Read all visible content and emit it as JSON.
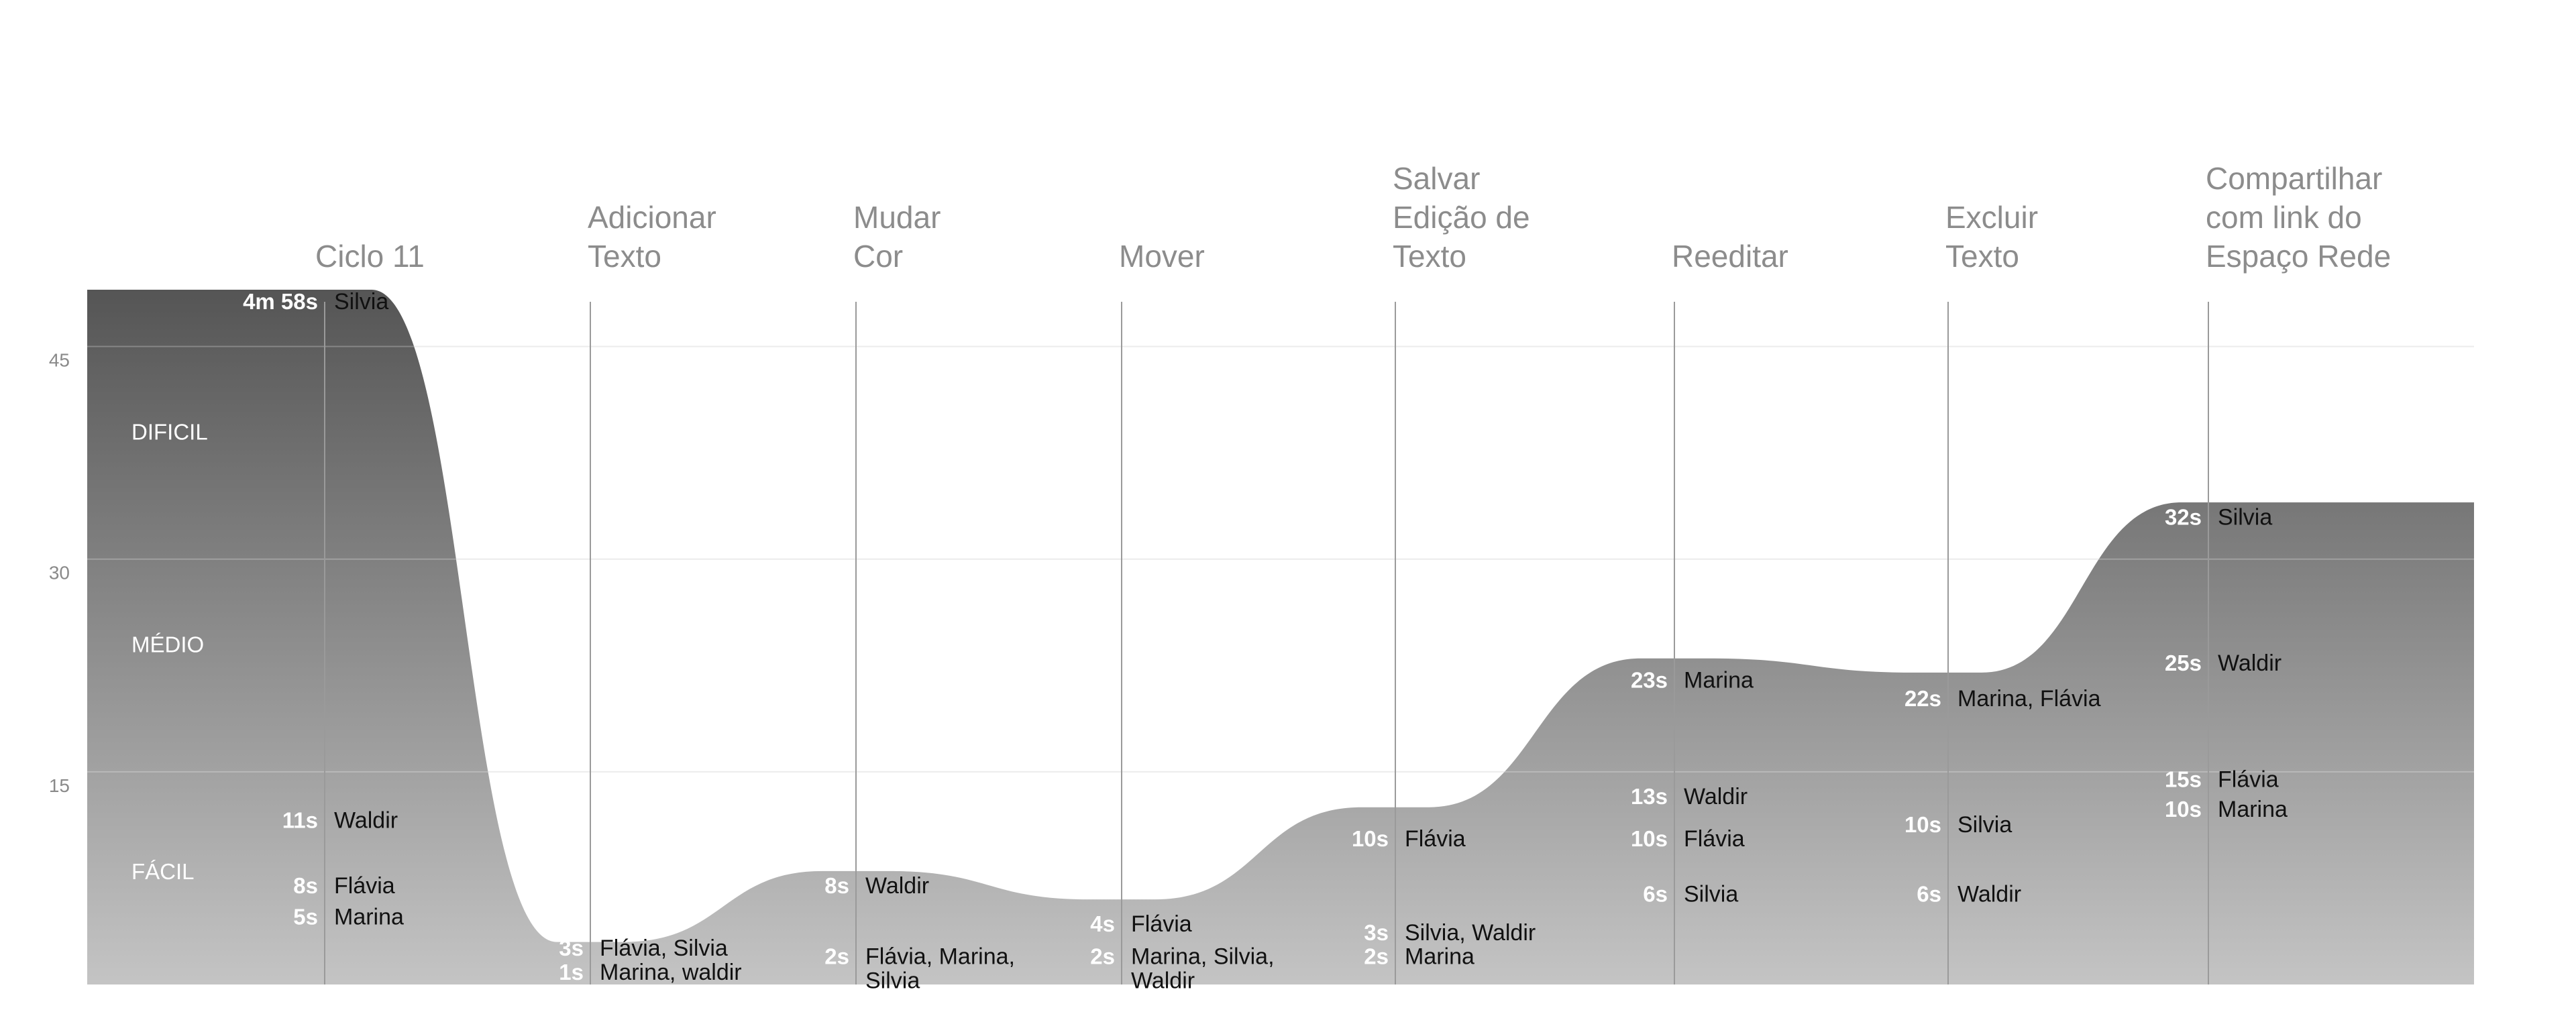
{
  "chart_data": {
    "type": "area",
    "colors": {
      "area_top": "#555555",
      "area_bottom": "#c4c4c4",
      "stage_line": "#9a9a9a",
      "grid": "#e6e6e6",
      "title_text": "#8c8c8c",
      "time_text": "#ffffff",
      "name_text": "#111111"
    },
    "y_ticks": [
      15,
      30,
      45
    ],
    "ylim": [
      0,
      49
    ],
    "bands": [
      {
        "label": "DIFICIL",
        "y": 39
      },
      {
        "label": "MÉDIO",
        "y": 24
      },
      {
        "label": "FÁCIL",
        "y": 8
      }
    ],
    "stages": [
      {
        "title": [
          "Ciclo 11"
        ],
        "peak": 49,
        "entries": [
          {
            "time": "4m 58s",
            "names": [
              "Silvia"
            ],
            "y": 48.2
          },
          {
            "time": "11s",
            "names": [
              "Waldir"
            ],
            "y": 11.6
          },
          {
            "time": "8s",
            "names": [
              "Flávia"
            ],
            "y": 7
          },
          {
            "time": "5s",
            "names": [
              "Marina"
            ],
            "y": 4.8
          }
        ]
      },
      {
        "title": [
          "Adicionar",
          "Texto"
        ],
        "peak": 3,
        "entries": [
          {
            "time": "3s",
            "names": [
              "Flávia, Silvia"
            ],
            "y": 2.6
          },
          {
            "time": "1s",
            "names": [
              "Marina, waldir"
            ],
            "y": 0.9
          }
        ]
      },
      {
        "title": [
          "Mudar",
          "Cor"
        ],
        "peak": 8,
        "entries": [
          {
            "time": "8s",
            "names": [
              "Waldir"
            ],
            "y": 7
          },
          {
            "time": "2s",
            "names": [
              "Flávia, Marina,",
              "Silvia"
            ],
            "y": 2
          }
        ]
      },
      {
        "title": [
          "Mover"
        ],
        "peak": 6,
        "entries": [
          {
            "time": "4s",
            "names": [
              "Flávia"
            ],
            "y": 4.3
          },
          {
            "time": "2s",
            "names": [
              "Marina, Silvia,",
              "Waldir"
            ],
            "y": 2
          }
        ]
      },
      {
        "title": [
          "Salvar",
          "Edição de",
          "Texto"
        ],
        "peak": 12.5,
        "entries": [
          {
            "time": "10s",
            "names": [
              "Flávia"
            ],
            "y": 10.3
          },
          {
            "time": "3s",
            "names": [
              "Silvia, Waldir"
            ],
            "y": 3.7
          },
          {
            "time": "2s",
            "names": [
              "Marina"
            ],
            "y": 2
          }
        ]
      },
      {
        "title": [
          "Reeditar"
        ],
        "peak": 23,
        "entries": [
          {
            "time": "23s",
            "names": [
              "Marina"
            ],
            "y": 21.5
          },
          {
            "time": "13s",
            "names": [
              "Waldir"
            ],
            "y": 13.3
          },
          {
            "time": "10s",
            "names": [
              "Flávia"
            ],
            "y": 10.3
          },
          {
            "time": "6s",
            "names": [
              "Silvia"
            ],
            "y": 6.4
          }
        ]
      },
      {
        "title": [
          "Excluir",
          "Texto"
        ],
        "peak": 22,
        "entries": [
          {
            "time": "22s",
            "names": [
              "Marina, Flávia"
            ],
            "y": 20.2
          },
          {
            "time": "10s",
            "names": [
              "Silvia"
            ],
            "y": 11.3
          },
          {
            "time": "6s",
            "names": [
              "Waldir"
            ],
            "y": 6.4
          }
        ]
      },
      {
        "title": [
          "Compartilhar",
          "com link do",
          "Espaço Rede"
        ],
        "peak": 34,
        "entries": [
          {
            "time": "32s",
            "names": [
              "Silvia"
            ],
            "y": 33
          },
          {
            "time": "25s",
            "names": [
              "Waldir"
            ],
            "y": 22.7
          },
          {
            "time": "15s",
            "names": [
              "Flávia"
            ],
            "y": 14.5
          },
          {
            "time": "10s",
            "names": [
              "Marina"
            ],
            "y": 12.4
          }
        ]
      }
    ]
  }
}
